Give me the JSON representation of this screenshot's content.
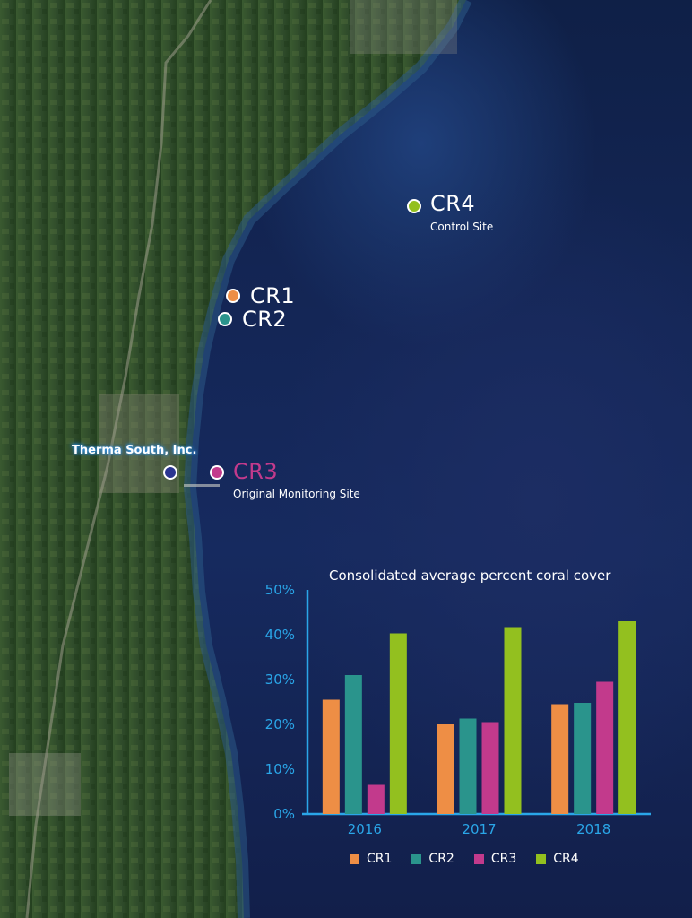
{
  "sites": [
    {
      "id": "CR1",
      "label": "CR1",
      "sub": "",
      "color": "#ee8e45"
    },
    {
      "id": "CR2",
      "label": "CR2",
      "sub": "",
      "color": "#2a948c"
    },
    {
      "id": "CR3",
      "label": "CR3",
      "sub": "Original Monitoring Site",
      "color": "#c23a8c"
    },
    {
      "id": "CR4",
      "label": "CR4",
      "sub": "Control Site",
      "color": "#93c01f"
    }
  ],
  "facility": {
    "label": "Therma South, Inc.",
    "color": "#2b3591"
  },
  "colors": {
    "axis": "#2aa6e8",
    "land": "#2f4a2c",
    "ocean": "#142656"
  },
  "chart_data": {
    "type": "bar",
    "title": "Consolidated average percent coral cover",
    "xlabel": "",
    "ylabel": "",
    "categories": [
      "2016",
      "2017",
      "2018"
    ],
    "ylim": [
      0,
      50
    ],
    "yticks": [
      "0%",
      "10%",
      "20%",
      "30%",
      "40%",
      "50%"
    ],
    "series": [
      {
        "name": "CR1",
        "color": "#ee8e45",
        "values": [
          25.5,
          20.0,
          24.5
        ]
      },
      {
        "name": "CR2",
        "color": "#2a948c",
        "values": [
          31.0,
          21.3,
          24.8
        ]
      },
      {
        "name": "CR3",
        "color": "#c23a8c",
        "values": [
          6.5,
          20.5,
          29.5
        ]
      },
      {
        "name": "CR4",
        "color": "#93c01f",
        "values": [
          40.3,
          41.7,
          43.0
        ]
      }
    ],
    "grid": false,
    "legend": "bottom"
  }
}
